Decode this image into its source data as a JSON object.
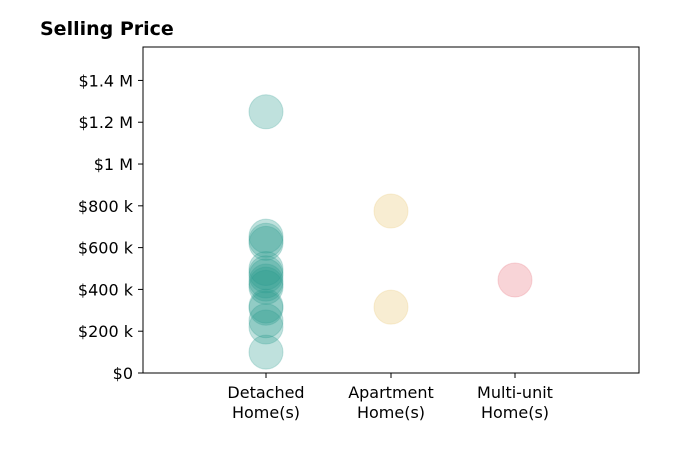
{
  "chart_data": {
    "type": "scatter",
    "title": "Selling Price",
    "xlabel": "",
    "ylabel": "",
    "categories": [
      [
        "Detached",
        "Home(s)"
      ],
      [
        "Apartment",
        "Home(s)"
      ],
      [
        "Multi-unit",
        "Home(s)"
      ]
    ],
    "yticks": [
      {
        "value": 0,
        "label": "$0"
      },
      {
        "value": 200000,
        "label": "$200 k"
      },
      {
        "value": 400000,
        "label": "$400 k"
      },
      {
        "value": 600000,
        "label": "$600 k"
      },
      {
        "value": 800000,
        "label": "$800 k"
      },
      {
        "value": 1000000,
        "label": "$1 M"
      },
      {
        "value": 1200000,
        "label": "$1.2 M"
      },
      {
        "value": 1400000,
        "label": "$1.4 M"
      }
    ],
    "ylim": [
      0,
      1560000
    ],
    "grid": false,
    "series": [
      {
        "category_index": 0,
        "color": "#2a9d8f",
        "values": [
          1250000,
          655000,
          635000,
          620000,
          500000,
          480000,
          465000,
          440000,
          425000,
          410000,
          320000,
          310000,
          250000,
          220000,
          100000
        ]
      },
      {
        "category_index": 1,
        "color": "#e9c46a",
        "values": [
          775000,
          315000
        ]
      },
      {
        "category_index": 2,
        "color": "#e76f7a",
        "values": [
          445000
        ]
      }
    ]
  }
}
